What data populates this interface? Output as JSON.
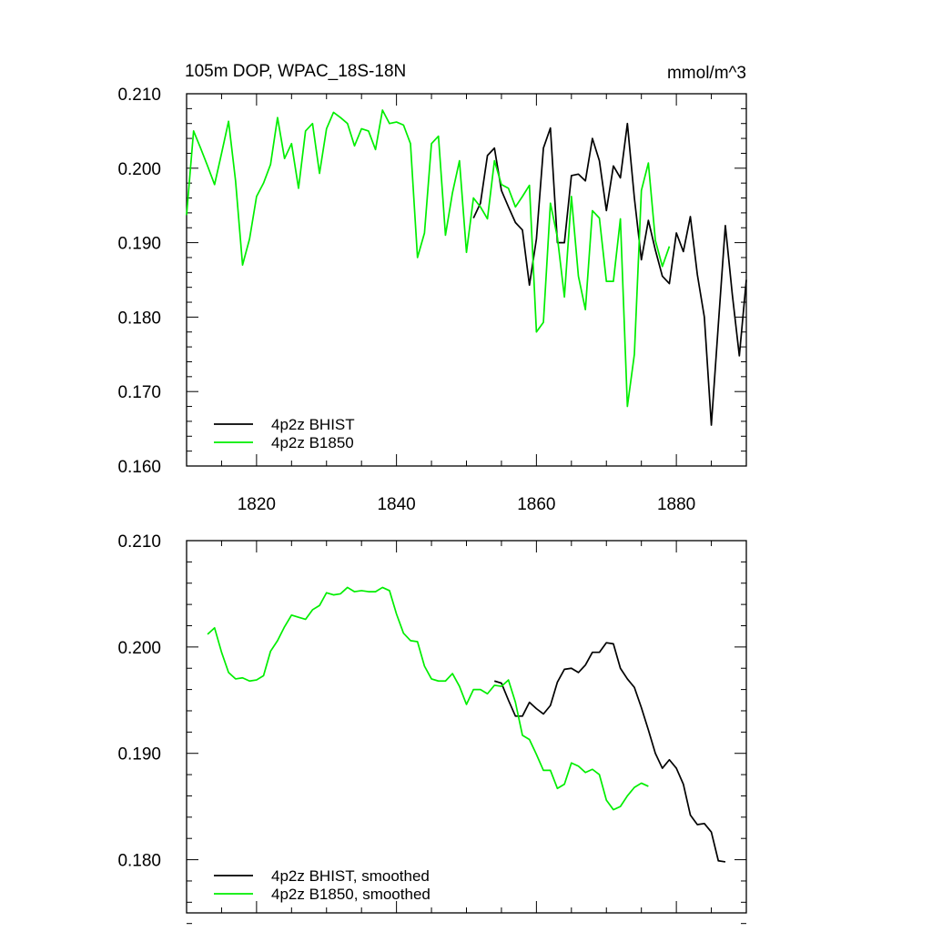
{
  "chart_data": [
    {
      "type": "line",
      "title": "105m DOP, WPAC_18S-18N",
      "units": "mmol/m^3",
      "xlim": [
        1810,
        1890
      ],
      "ylim": [
        0.16,
        0.21
      ],
      "x_ticks": [
        1820,
        1840,
        1860,
        1880
      ],
      "x_tick_labels": [
        "1820",
        "1840",
        "1860",
        "1880"
      ],
      "y_ticks": [
        0.16,
        0.17,
        0.18,
        0.19,
        0.2,
        0.21
      ],
      "y_tick_labels": [
        "0.160",
        "0.170",
        "0.180",
        "0.190",
        "0.200",
        "0.210"
      ],
      "grid": false,
      "legend_position": "bottom-left",
      "series": [
        {
          "name": "4p2z BHIST",
          "color": "#000000",
          "x_start": 1851,
          "values": [
            0.1933,
            0.1953,
            0.2017,
            0.2027,
            0.197,
            0.1948,
            0.1927,
            0.1917,
            0.1843,
            0.1905,
            0.2027,
            0.2054,
            0.19,
            0.19,
            0.199,
            0.1992,
            0.1983,
            0.204,
            0.201,
            0.1943,
            0.2003,
            0.1987,
            0.206,
            0.196,
            0.1877,
            0.193,
            0.189,
            0.1855,
            0.1845,
            0.1913,
            0.1888,
            0.1935,
            0.1857,
            0.18,
            0.1655,
            0.179,
            0.1923,
            0.183,
            0.1748,
            0.185
          ]
        },
        {
          "name": "4p2z B1850",
          "color": "#00ee00",
          "x_start": 1810,
          "values": [
            0.1937,
            0.205,
            0.2027,
            0.2003,
            0.1978,
            0.202,
            0.2063,
            0.1983,
            0.187,
            0.1905,
            0.1962,
            0.198,
            0.2005,
            0.2068,
            0.2013,
            0.2033,
            0.1973,
            0.205,
            0.206,
            0.1993,
            0.2053,
            0.2075,
            0.2068,
            0.206,
            0.203,
            0.2053,
            0.205,
            0.2025,
            0.2078,
            0.206,
            0.2062,
            0.2058,
            0.2033,
            0.188,
            0.1913,
            0.2033,
            0.2043,
            0.191,
            0.1967,
            0.201,
            0.1887,
            0.196,
            0.1948,
            0.1932,
            0.201,
            0.1978,
            0.1973,
            0.1948,
            0.1962,
            0.1977,
            0.178,
            0.1793,
            0.1953,
            0.1907,
            0.1827,
            0.1962,
            0.1855,
            0.181,
            0.1943,
            0.1933,
            0.1848,
            0.1848,
            0.1932,
            0.168,
            0.175,
            0.197,
            0.2007,
            0.1903,
            0.1868,
            0.1895
          ]
        }
      ]
    },
    {
      "type": "line",
      "title": "",
      "xlim": [
        1810,
        1890
      ],
      "ylim": [
        0.175,
        0.21
      ],
      "x_ticks": [
        1820,
        1840,
        1860,
        1880
      ],
      "x_tick_labels": [],
      "y_ticks": [
        0.18,
        0.19,
        0.2,
        0.21
      ],
      "y_tick_labels": [
        "0.180",
        "0.190",
        "0.200",
        "0.210"
      ],
      "grid": false,
      "legend_position": "bottom-left",
      "series": [
        {
          "name": "4p2z BHIST, smoothed",
          "color": "#000000",
          "x_start": 1854,
          "values": [
            0.1968,
            0.1966,
            0.195,
            0.1935,
            0.1935,
            0.1948,
            0.1942,
            0.1937,
            0.1945,
            0.1967,
            0.1979,
            0.198,
            0.1976,
            0.1983,
            0.1995,
            0.1995,
            0.2004,
            0.2003,
            0.198,
            0.197,
            0.1962,
            0.1943,
            0.1922,
            0.19,
            0.1886,
            0.1894,
            0.1886,
            0.1871,
            0.1842,
            0.1833,
            0.1834,
            0.1826,
            0.1799,
            0.1798
          ]
        },
        {
          "name": "4p2z B1850, smoothed",
          "color": "#00ee00",
          "x_start": 1813,
          "values": [
            0.2012,
            0.2018,
            0.1995,
            0.1976,
            0.197,
            0.1971,
            0.1968,
            0.1969,
            0.1973,
            0.1996,
            0.2006,
            0.2019,
            0.203,
            0.2028,
            0.2026,
            0.2035,
            0.2039,
            0.2051,
            0.2049,
            0.205,
            0.2056,
            0.2052,
            0.2053,
            0.2052,
            0.2052,
            0.2056,
            0.2053,
            0.2031,
            0.2013,
            0.2006,
            0.2005,
            0.1982,
            0.197,
            0.1968,
            0.1968,
            0.1975,
            0.1963,
            0.1946,
            0.196,
            0.196,
            0.1956,
            0.1964,
            0.1963,
            0.1969,
            0.1948,
            0.1917,
            0.1913,
            0.1899,
            0.1884,
            0.1884,
            0.1867,
            0.1871,
            0.1891,
            0.1888,
            0.1882,
            0.1885,
            0.188,
            0.1856,
            0.1847,
            0.185,
            0.186,
            0.1868,
            0.1872,
            0.1869
          ]
        }
      ]
    }
  ]
}
